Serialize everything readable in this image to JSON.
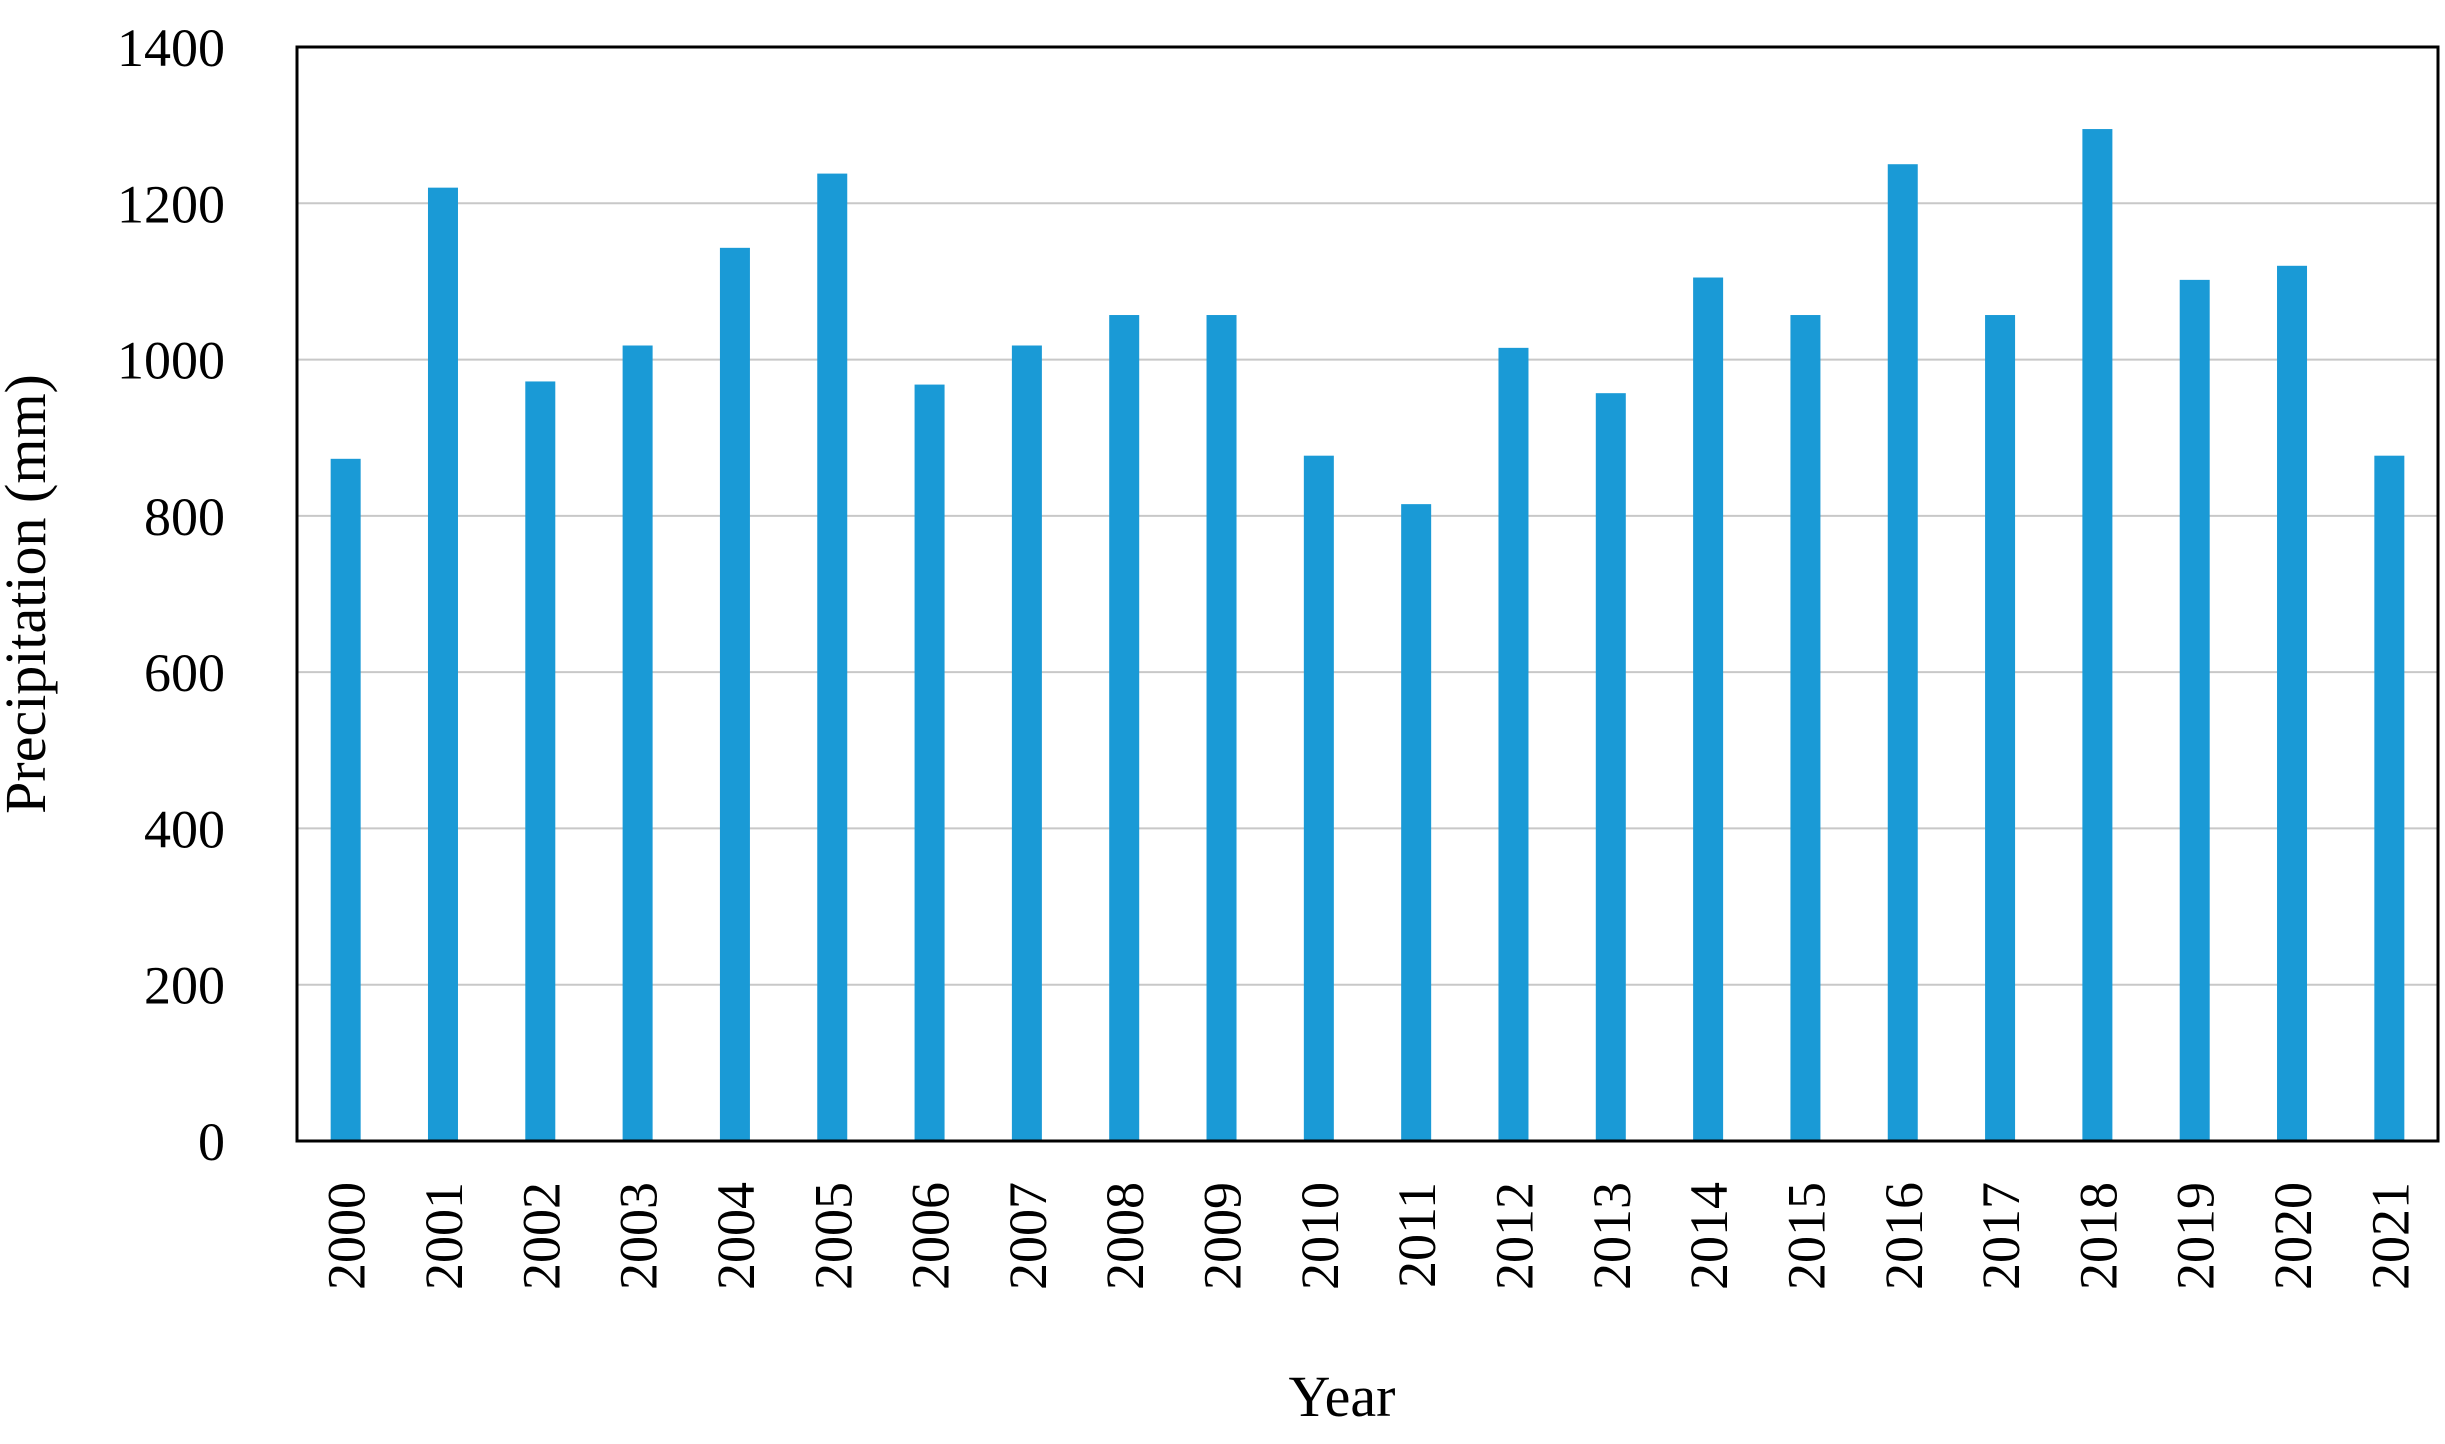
{
  "chart_data": {
    "type": "bar",
    "title": "",
    "xlabel": "Year",
    "ylabel": "Precipitation (mm)",
    "ylim": [
      0,
      1400
    ],
    "yticks": [
      0,
      200,
      400,
      600,
      800,
      1000,
      1200,
      1400
    ],
    "grid": true,
    "bar_color": "#1a9ad6",
    "categories": [
      "2000",
      "2001",
      "2002",
      "2003",
      "2004",
      "2005",
      "2006",
      "2007",
      "2008",
      "2009",
      "2010",
      "2011",
      "2012",
      "2013",
      "2014",
      "2015",
      "2016",
      "2017",
      "2018",
      "2019",
      "2020",
      "2021"
    ],
    "values": [
      873,
      1220,
      972,
      1018,
      1143,
      1238,
      968,
      1018,
      1057,
      1057,
      877,
      815,
      1015,
      957,
      1105,
      1057,
      1250,
      1057,
      1295,
      1102,
      1120,
      877
    ]
  }
}
